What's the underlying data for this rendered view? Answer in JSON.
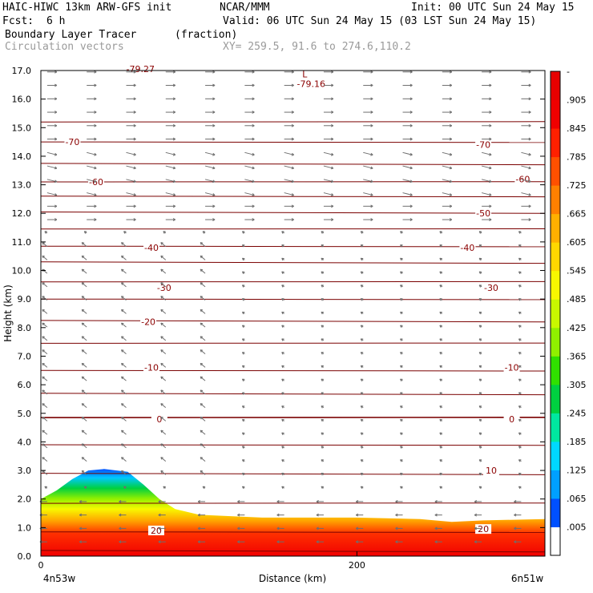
{
  "header": {
    "title_left": "HAIC-HIWC 13km ARW-GFS init",
    "title_center": "NCAR/MMM",
    "init": "Init: 00 UTC Sun 24 May 15",
    "fcst_label": "Fcst:",
    "fcst_value": "6 h",
    "valid": "Valid: 06 UTC Sun 24 May 15 (03 LST Sun 24 May 15)",
    "field_name": "Boundary Layer Tracer",
    "field_unit": "(fraction)",
    "vector_label": "Circulation vectors",
    "xy_text": "XY= 259.5, 91.6 to 274.6,110.2"
  },
  "chart_data": {
    "type": "heatmap",
    "xlabel": "Distance (km)",
    "ylabel": "Height (km)",
    "xlim": [
      0,
      319
    ],
    "ylim": [
      0,
      17
    ],
    "x_ticks": [
      0,
      200
    ],
    "x_tick_labels": [
      "0",
      "200"
    ],
    "x_end_labels": {
      "left": "4n53w",
      "right": "6n51w"
    },
    "y_ticks": [
      0,
      1,
      2,
      3,
      4,
      5,
      6,
      7,
      8,
      9,
      10,
      11,
      12,
      13,
      14,
      15,
      16,
      17
    ],
    "y_tick_labels": [
      "0.0",
      "1.0",
      "2.0",
      "3.0",
      "4.0",
      "5.0",
      "6.0",
      "7.0",
      "8.0",
      "9.0",
      "10.0",
      "11.0",
      "12.0",
      "13.0",
      "14.0",
      "15.0",
      "16.0",
      "17.0"
    ],
    "colorbar": {
      "levels": [
        ".005",
        ".065",
        ".125",
        ".185",
        ".245",
        ".305",
        ".365",
        ".425",
        ".485",
        ".545",
        ".605",
        ".665",
        ".725",
        ".785",
        ".845",
        ".905",
        "-"
      ],
      "colors": [
        "#ffffff",
        "#0050ff",
        "#00a0ff",
        "#00d8ff",
        "#00e8a0",
        "#00d040",
        "#30e000",
        "#90f000",
        "#c8f800",
        "#f8f800",
        "#ffd800",
        "#ffb000",
        "#ff8000",
        "#ff5000",
        "#ff2000",
        "#f00000",
        "#e80000"
      ]
    },
    "tracer_top_km": [
      [
        0,
        2.0
      ],
      [
        10,
        2.3
      ],
      [
        20,
        2.7
      ],
      [
        30,
        3.0
      ],
      [
        40,
        3.05
      ],
      [
        55,
        2.95
      ],
      [
        65,
        2.5
      ],
      [
        75,
        2.0
      ],
      [
        85,
        1.65
      ],
      [
        100,
        1.45
      ],
      [
        140,
        1.35
      ],
      [
        180,
        1.35
      ],
      [
        200,
        1.35
      ],
      [
        240,
        1.3
      ],
      [
        260,
        1.2
      ],
      [
        280,
        1.25
      ],
      [
        319,
        1.3
      ]
    ],
    "temperature_contours": [
      {
        "label": "-70",
        "x": 20,
        "y": 14.5
      },
      {
        "label": "-70",
        "x": 280,
        "y": 14.4
      },
      {
        "label": "-60",
        "x": 35,
        "y": 13.1
      },
      {
        "label": "-60",
        "x": 305,
        "y": 13.2
      },
      {
        "label": "-50",
        "x": 280,
        "y": 12.0
      },
      {
        "label": "-40",
        "x": 70,
        "y": 10.8
      },
      {
        "label": "-40",
        "x": 270,
        "y": 10.8
      },
      {
        "label": "-30",
        "x": 78,
        "y": 9.4
      },
      {
        "label": "-30",
        "x": 285,
        "y": 9.4
      },
      {
        "label": "-20",
        "x": 68,
        "y": 8.2
      },
      {
        "label": "-10",
        "x": 70,
        "y": 6.6
      },
      {
        "label": "-10",
        "x": 298,
        "y": 6.6
      },
      {
        "label": "0",
        "x": 75,
        "y": 4.8
      },
      {
        "label": "0",
        "x": 298,
        "y": 4.8
      },
      {
        "label": "10",
        "x": 285,
        "y": 3.0
      },
      {
        "label": "20",
        "x": 73,
        "y": 0.9
      },
      {
        "label": "20",
        "x": 280,
        "y": 0.95
      }
    ],
    "low_marker": {
      "label": "L",
      "value": "-79.16",
      "x": 167,
      "y": 16.6
    },
    "top_partial_label": {
      "text": "-79.27",
      "x": 63,
      "y": 17.0
    }
  }
}
